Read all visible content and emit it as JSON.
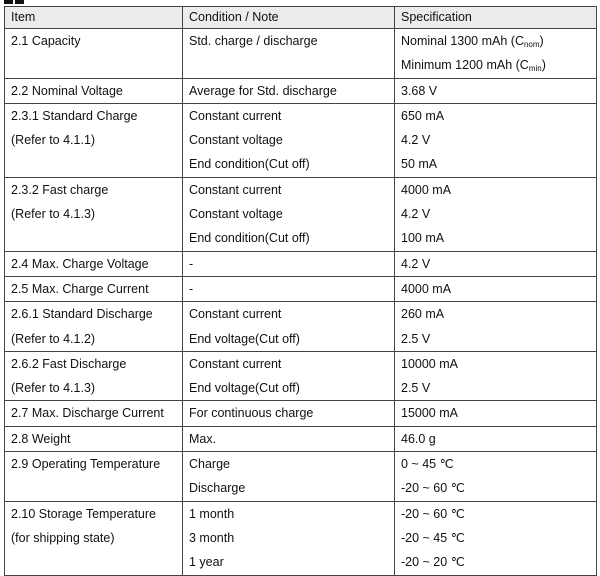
{
  "header": {
    "item": "Item",
    "condition": "Condition / Note",
    "spec": "Specification"
  },
  "rows": [
    {
      "item": [
        "2.1 Capacity"
      ],
      "cond": [
        "Std. charge / discharge"
      ],
      "spec": [
        {
          "text": "Nominal 1300 mAh (C",
          "sub": "nom",
          "tail": ")"
        },
        {
          "text": "Minimum 1200 mAh (C",
          "sub": "min",
          "tail": ")"
        }
      ]
    },
    {
      "item": [
        "2.2 Nominal Voltage"
      ],
      "cond": [
        "Average for Std. discharge"
      ],
      "spec": [
        {
          "text": "3.68 V"
        }
      ]
    },
    {
      "item": [
        "2.3.1 Standard Charge",
        "(Refer to 4.1.1)"
      ],
      "cond": [
        "Constant current",
        "Constant voltage",
        "End condition(Cut off)"
      ],
      "spec": [
        {
          "text": "650 mA"
        },
        {
          "text": "4.2 V"
        },
        {
          "text": "50 mA"
        }
      ]
    },
    {
      "item": [
        "2.3.2 Fast charge",
        "(Refer to 4.1.3)"
      ],
      "cond": [
        "Constant current",
        "Constant voltage",
        "End condition(Cut off)"
      ],
      "spec": [
        {
          "text": "4000 mA"
        },
        {
          "text": "4.2 V"
        },
        {
          "text": "100 mA"
        }
      ]
    },
    {
      "item": [
        "2.4 Max. Charge Voltage"
      ],
      "cond": [
        "-"
      ],
      "spec": [
        {
          "text": "4.2 V"
        }
      ]
    },
    {
      "item": [
        "2.5 Max. Charge Current"
      ],
      "cond": [
        "-"
      ],
      "spec": [
        {
          "text": "4000 mA"
        }
      ]
    },
    {
      "item": [
        "2.6.1 Standard Discharge",
        "(Refer to 4.1.2)"
      ],
      "cond": [
        "Constant current",
        "End voltage(Cut off)"
      ],
      "spec": [
        {
          "text": "260 mA"
        },
        {
          "text": "2.5 V"
        }
      ]
    },
    {
      "item": [
        "2.6.2 Fast Discharge",
        "(Refer to 4.1.3)"
      ],
      "cond": [
        "Constant current",
        "End voltage(Cut off)"
      ],
      "spec": [
        {
          "text": "10000 mA"
        },
        {
          "text": "2.5 V"
        }
      ]
    },
    {
      "item": [
        "2.7 Max. Discharge Current"
      ],
      "cond": [
        "For continuous charge"
      ],
      "spec": [
        {
          "text": "15000 mA"
        }
      ]
    },
    {
      "item": [
        "2.8 Weight"
      ],
      "cond": [
        "Max."
      ],
      "spec": [
        {
          "text": "46.0 g"
        }
      ]
    },
    {
      "item": [
        "2.9 Operating Temperature"
      ],
      "cond": [
        "Charge",
        "Discharge"
      ],
      "spec": [
        {
          "text": "0 ~ 45 ℃"
        },
        {
          "text": "-20 ~ 60 ℃"
        }
      ]
    },
    {
      "item": [
        "2.10 Storage Temperature",
        "(for shipping state)"
      ],
      "cond": [
        "1 month",
        "3 month",
        "1 year"
      ],
      "spec": [
        {
          "text": "-20 ~ 60 ℃"
        },
        {
          "text": "-20 ~ 45 ℃"
        },
        {
          "text": "-20 ~ 20 ℃"
        }
      ]
    }
  ]
}
